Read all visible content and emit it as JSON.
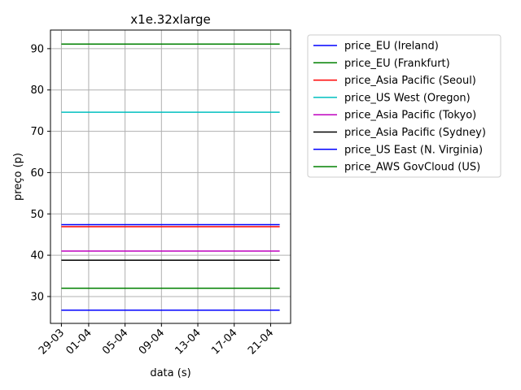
{
  "chart_data": {
    "type": "line",
    "title": "x1e.32xlarge",
    "xlabel": "data (s)",
    "ylabel": "preço (p)",
    "x_tick_labels": [
      "29-03",
      "01-04",
      "05-04",
      "09-04",
      "13-04",
      "17-04",
      "21-04"
    ],
    "x_tick_days": [
      0,
      3,
      7,
      11,
      15,
      19,
      23
    ],
    "x_range_days": [
      -1.2,
      25.2
    ],
    "x_span_days": [
      0,
      24
    ],
    "ylim": [
      23.5,
      94.5
    ],
    "y_ticks": [
      30,
      40,
      50,
      60,
      70,
      80,
      90
    ],
    "grid": true,
    "legend_position": "outside-right",
    "series": [
      {
        "name": "price_EU (Ireland)",
        "color": "#0000ff",
        "value": 26.7
      },
      {
        "name": "price_EU (Frankfurt)",
        "color": "#008000",
        "value": 32.0
      },
      {
        "name": "price_Asia Pacific (Seoul)",
        "color": "#ff0000",
        "value": 46.9
      },
      {
        "name": "price_US West (Oregon)",
        "color": "#00bfbf",
        "value": 74.6
      },
      {
        "name": "price_Asia Pacific (Tokyo)",
        "color": "#bf00bf",
        "value": 41.0
      },
      {
        "name": "price_Asia Pacific (Sydney)",
        "color": "#000000",
        "value": 38.8
      },
      {
        "name": "price_US East (N. Virginia)",
        "color": "#0000ff",
        "value": 47.4
      },
      {
        "name": "price_AWS GovCloud (US)",
        "color": "#008000",
        "value": 91.1
      }
    ]
  }
}
